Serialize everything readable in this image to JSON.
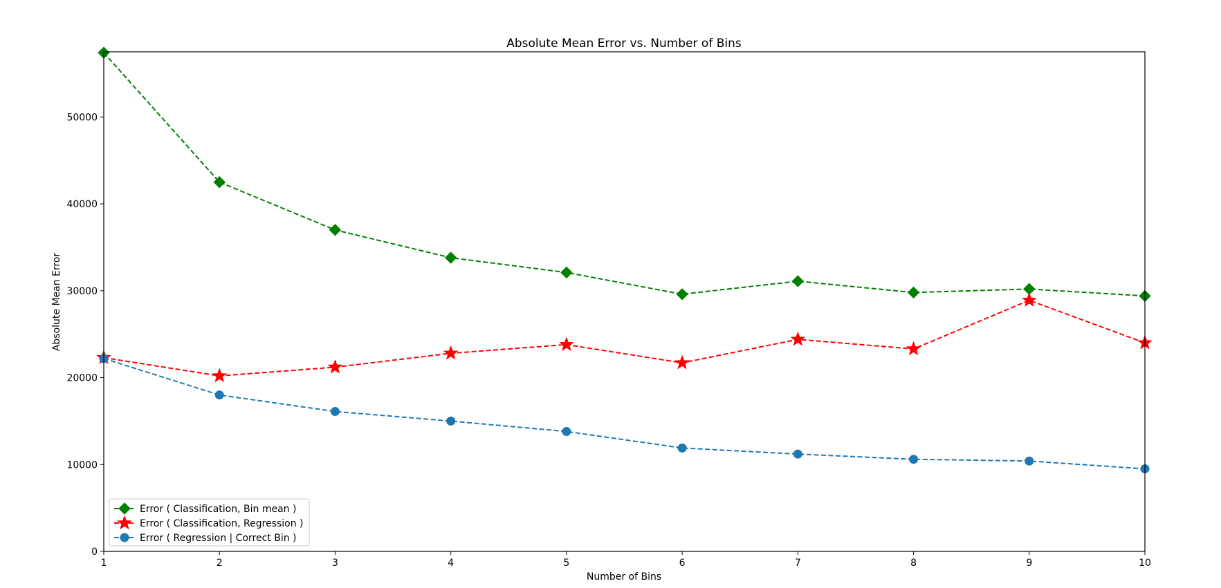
{
  "chart_data": {
    "type": "line",
    "title": "Absolute Mean Error vs. Number of Bins",
    "xlabel": "Number of Bins",
    "ylabel": "Absolute Mean Error",
    "x": [
      1,
      2,
      3,
      4,
      5,
      6,
      7,
      8,
      9,
      10
    ],
    "xlim": [
      1,
      10
    ],
    "ylim": [
      0,
      57500
    ],
    "xticks": [
      "1",
      "2",
      "3",
      "4",
      "5",
      "6",
      "7",
      "8",
      "9",
      "10"
    ],
    "yticks": [
      0,
      10000,
      20000,
      30000,
      40000,
      50000
    ],
    "ytick_labels": [
      "0",
      "10000",
      "20000",
      "30000",
      "40000",
      "50000"
    ],
    "grid": false,
    "legend_position": "bottom-left",
    "series": [
      {
        "name": "Error ( Classification, Bin mean )",
        "color": "#008000",
        "marker": "diamond",
        "linestyle": "dashed",
        "values": [
          57400,
          42500,
          37000,
          33800,
          32100,
          29600,
          31100,
          29800,
          30200,
          29400
        ]
      },
      {
        "name": "Error ( Classification, Regression )",
        "color": "#ff0000",
        "marker": "star",
        "linestyle": "dashed",
        "values": [
          22300,
          20200,
          21200,
          22800,
          23800,
          21700,
          24400,
          23300,
          28900,
          24000
        ]
      },
      {
        "name": "Error ( Regression | Correct Bin )",
        "color": "#1f77b4",
        "marker": "circle",
        "linestyle": "dashed",
        "values": [
          22200,
          18000,
          16100,
          15000,
          13800,
          11900,
          11200,
          10600,
          10400,
          9500
        ]
      }
    ]
  }
}
